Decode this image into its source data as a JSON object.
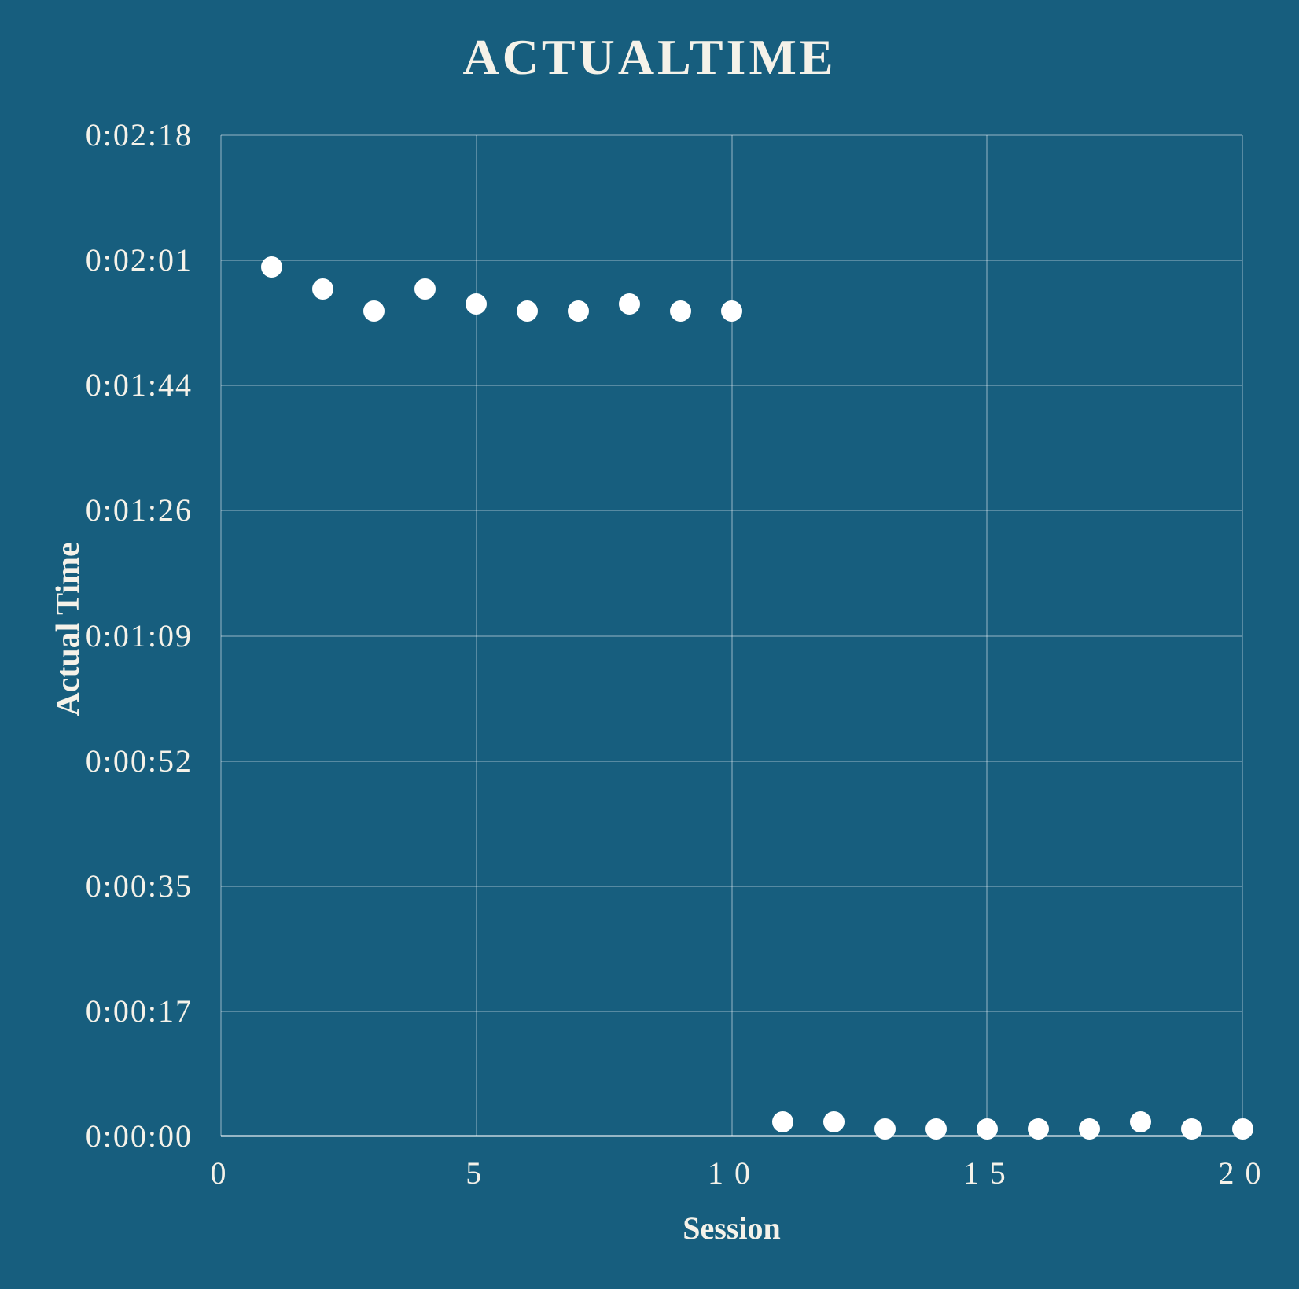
{
  "chart": {
    "title": "ACTUALTIME",
    "x_axis_title": "Session",
    "y_axis_title": "Actual Time"
  },
  "colors": {
    "background": "#175E7E",
    "gridline": "rgba(255,255,255,0.28)",
    "axis_line": "rgba(255,255,255,0.55)",
    "text": "#F5F2E9",
    "marker": "#FFFFFF"
  },
  "chart_data": {
    "type": "scatter",
    "title": "ACTUALTIME",
    "xlabel": "Session",
    "ylabel": "Actual Time",
    "legend": false,
    "grid": true,
    "xlim": [
      0,
      20
    ],
    "ylim_seconds": [
      0,
      138.24
    ],
    "x_tick_values": [
      0,
      5,
      10,
      15,
      20
    ],
    "x_tick_labels": [
      "0",
      "5",
      "10",
      "15",
      "20"
    ],
    "y_tick_seconds": [
      0,
      17.28,
      34.56,
      51.84,
      69.12,
      86.4,
      103.68,
      120.96,
      138.24
    ],
    "y_tick_labels": [
      "0:00:00",
      "0:00:17",
      "0:00:35",
      "0:00:52",
      "0:01:09",
      "0:01:26",
      "0:01:44",
      "0:02:01",
      "0:02:18"
    ],
    "series": [
      {
        "name": "Actual Time",
        "x": [
          1,
          2,
          3,
          4,
          5,
          6,
          7,
          8,
          9,
          10,
          11,
          12,
          13,
          14,
          15,
          16,
          17,
          18,
          19,
          20
        ],
        "y_seconds": [
          120,
          117,
          114,
          117,
          115,
          114,
          114,
          115,
          114,
          114,
          2,
          2,
          1,
          1,
          1,
          1,
          1,
          2,
          1,
          1
        ],
        "y_time_labels": [
          "0:02:00",
          "0:01:57",
          "0:01:54",
          "0:01:57",
          "0:01:55",
          "0:01:54",
          "0:01:54",
          "0:01:55",
          "0:01:54",
          "0:01:54",
          "0:00:02",
          "0:00:02",
          "0:00:01",
          "0:00:01",
          "0:00:01",
          "0:00:01",
          "0:00:01",
          "0:00:02",
          "0:00:01",
          "0:00:01"
        ]
      }
    ]
  }
}
